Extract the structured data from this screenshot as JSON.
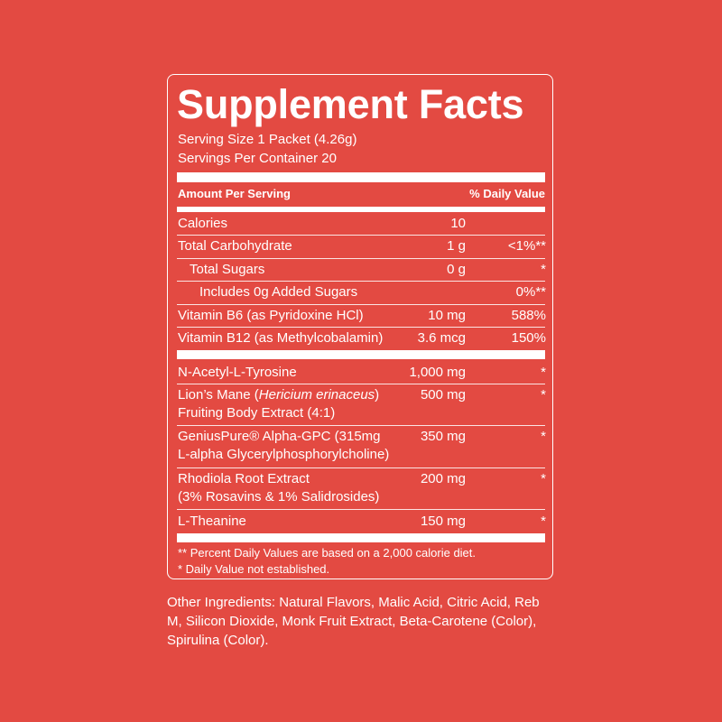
{
  "label": {
    "title": "Supplement Facts",
    "serving_size": "Serving Size 1 Packet (4.26g)",
    "servings_per_container": "Servings Per Container 20",
    "header_amount": "Amount Per Serving",
    "header_dv": "% Daily Value",
    "rows": [
      {
        "name": "Calories",
        "amount": "10",
        "dv": ""
      },
      {
        "name": "Total Carbohydrate",
        "amount": "1 g",
        "dv": "<1%**"
      },
      {
        "name": "Total Sugars",
        "amount": "0 g",
        "dv": "*"
      },
      {
        "name": "Includes 0g Added Sugars",
        "amount": "",
        "dv": "0%**"
      },
      {
        "name": "Vitamin B6 (as Pyridoxine HCl)",
        "amount": "10 mg",
        "dv": "588%"
      },
      {
        "name": "Vitamin B12 (as Methylcobalamin)",
        "amount": "3.6 mcg",
        "dv": "150%"
      },
      {
        "name": "N-Acetyl-L-Tyrosine",
        "amount": "1,000 mg",
        "dv": "*"
      },
      {
        "name": "Lion’s Mane (",
        "name_italic": "Hericium erinaceus",
        "name_tail": ")",
        "name2": "Fruiting Body Extract (4:1)",
        "amount": "500 mg",
        "dv": "*"
      },
      {
        "name": "GeniusPure® Alpha-GPC (315mg",
        "name2": "L-alpha Glycerylphosphorylcholine)",
        "amount": "350 mg",
        "dv": "*"
      },
      {
        "name": "Rhodiola Root Extract",
        "name2": "(3% Rosavins & 1% Salidrosides)",
        "amount": "200 mg",
        "dv": "*"
      },
      {
        "name": "L-Theanine",
        "amount": "150 mg",
        "dv": "*"
      }
    ],
    "footnote1": "** Percent Daily Values are based on a 2,000 calorie diet.",
    "footnote2": "* Daily Value not established."
  },
  "other_ingredients": "Other Ingredients: Natural Flavors, Malic Acid, Citric Acid, Reb M, Silicon Dioxide, Monk Fruit Extract, Beta-Carotene (Color), Spirulina (Color).",
  "colors": {
    "background": "#e34a42",
    "text": "#ffffff"
  }
}
